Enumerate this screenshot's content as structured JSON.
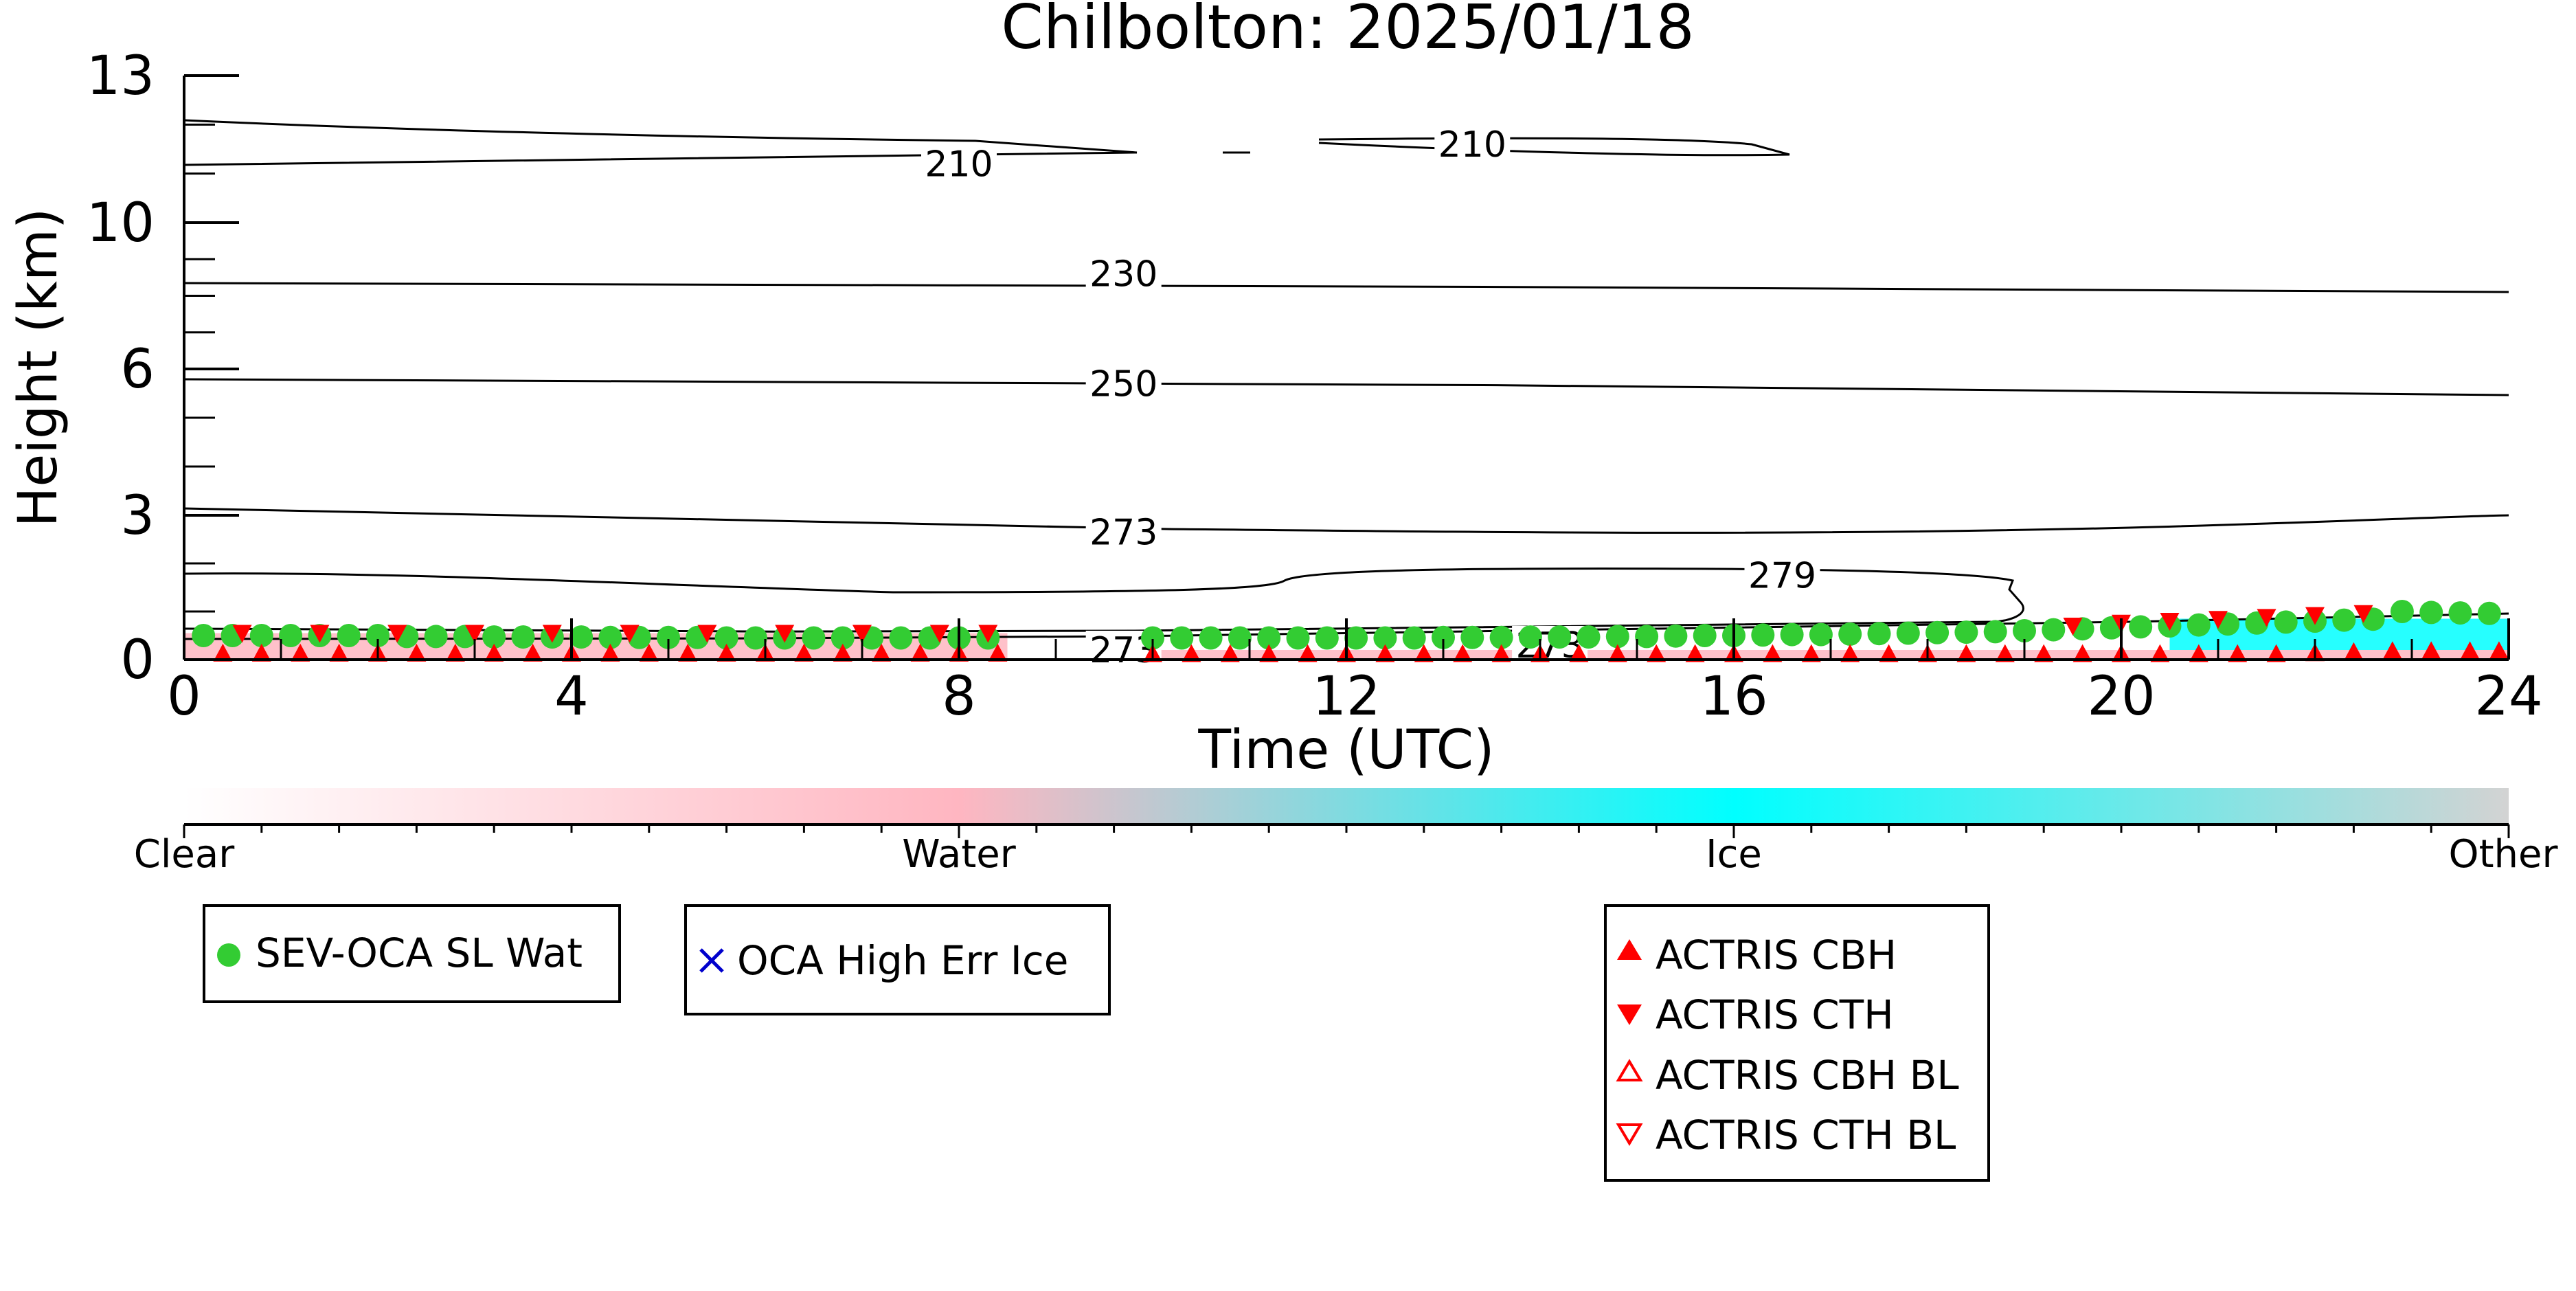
{
  "chart_data": {
    "type": "heatmap",
    "title": "Chilbolton: 2025/01/18",
    "xlabel": "Time (UTC)",
    "ylabel": "Height (km)",
    "xlim": [
      0,
      24
    ],
    "ylim": [
      0,
      13
    ],
    "y_scale": "nonlinear (stretched near surface)",
    "x_ticks": [
      0,
      4,
      8,
      12,
      16,
      20,
      24
    ],
    "x_tick_labels": [
      "0",
      "4",
      "8",
      "12",
      "16",
      "20",
      "24"
    ],
    "y_ticks": [
      0,
      3,
      6,
      10,
      13
    ],
    "y_tick_labels": [
      "0",
      "3",
      "6",
      "10",
      "13"
    ],
    "colorbar": {
      "labels": [
        "Clear",
        "Water",
        "Ice",
        "Other"
      ],
      "colors": [
        "#ffffff",
        "#ffb6c1",
        "#00ffff",
        "#d3d3d3"
      ]
    },
    "cloud_phase_segments": [
      {
        "phase": "Water",
        "start": 0.0,
        "end": 8.5,
        "base_km": 0.0,
        "top_km": 0.55
      },
      {
        "phase": "Water",
        "start": 9.5,
        "end": 24.0,
        "base_km": 0.0,
        "top_km": 0.2
      },
      {
        "phase": "Ice",
        "start": 20.5,
        "end": 24.0,
        "base_km": 0.2,
        "top_km": 0.85
      }
    ],
    "temperature_contours": [
      {
        "label": "210",
        "label_positions": [
          [
            8.0,
            11.2
          ],
          [
            13.3,
            11.6
          ]
        ]
      },
      {
        "label": "230",
        "label_positions": [
          [
            9.7,
            8.6
          ]
        ]
      },
      {
        "label": "250",
        "label_positions": [
          [
            9.7,
            5.7
          ]
        ]
      },
      {
        "label": "273",
        "label_positions": [
          [
            9.7,
            2.65
          ],
          [
            9.7,
            0.2
          ],
          [
            14.1,
            0.3
          ]
        ]
      },
      {
        "label": "279",
        "label_positions": [
          [
            16.5,
            1.75
          ]
        ]
      }
    ],
    "series": [
      {
        "name": "SEV-OCA SL Wat",
        "marker": "circle",
        "color": "#33cc33",
        "points": [
          [
            0.2,
            0.5
          ],
          [
            0.5,
            0.5
          ],
          [
            0.8,
            0.5
          ],
          [
            1.1,
            0.5
          ],
          [
            1.4,
            0.5
          ],
          [
            1.7,
            0.5
          ],
          [
            2.0,
            0.5
          ],
          [
            2.3,
            0.48
          ],
          [
            2.6,
            0.48
          ],
          [
            2.9,
            0.48
          ],
          [
            3.2,
            0.47
          ],
          [
            3.5,
            0.47
          ],
          [
            3.8,
            0.47
          ],
          [
            4.1,
            0.47
          ],
          [
            4.4,
            0.46
          ],
          [
            4.7,
            0.46
          ],
          [
            5.0,
            0.46
          ],
          [
            5.3,
            0.46
          ],
          [
            5.6,
            0.45
          ],
          [
            5.9,
            0.45
          ],
          [
            6.2,
            0.45
          ],
          [
            6.5,
            0.45
          ],
          [
            6.8,
            0.45
          ],
          [
            7.1,
            0.45
          ],
          [
            7.4,
            0.45
          ],
          [
            7.7,
            0.45
          ],
          [
            8.0,
            0.45
          ],
          [
            8.3,
            0.45
          ],
          [
            10.0,
            0.45
          ],
          [
            10.3,
            0.45
          ],
          [
            10.6,
            0.45
          ],
          [
            10.9,
            0.45
          ],
          [
            11.2,
            0.45
          ],
          [
            11.5,
            0.45
          ],
          [
            11.8,
            0.45
          ],
          [
            12.1,
            0.45
          ],
          [
            12.4,
            0.45
          ],
          [
            12.7,
            0.45
          ],
          [
            13.0,
            0.46
          ],
          [
            13.3,
            0.46
          ],
          [
            13.6,
            0.46
          ],
          [
            13.9,
            0.47
          ],
          [
            14.2,
            0.47
          ],
          [
            14.5,
            0.47
          ],
          [
            14.8,
            0.48
          ],
          [
            15.1,
            0.48
          ],
          [
            15.4,
            0.49
          ],
          [
            15.7,
            0.5
          ],
          [
            16.0,
            0.5
          ],
          [
            16.3,
            0.51
          ],
          [
            16.6,
            0.52
          ],
          [
            16.9,
            0.52
          ],
          [
            17.2,
            0.53
          ],
          [
            17.5,
            0.54
          ],
          [
            17.8,
            0.55
          ],
          [
            18.1,
            0.56
          ],
          [
            18.4,
            0.57
          ],
          [
            18.7,
            0.58
          ],
          [
            19.0,
            0.6
          ],
          [
            19.3,
            0.62
          ],
          [
            19.6,
            0.64
          ],
          [
            19.9,
            0.66
          ],
          [
            20.2,
            0.68
          ],
          [
            20.5,
            0.7
          ],
          [
            20.8,
            0.72
          ],
          [
            21.1,
            0.74
          ],
          [
            21.4,
            0.76
          ],
          [
            21.7,
            0.78
          ],
          [
            22.0,
            0.8
          ],
          [
            22.3,
            0.82
          ],
          [
            22.6,
            0.84
          ],
          [
            22.9,
            1.0
          ],
          [
            23.2,
            0.98
          ],
          [
            23.5,
            0.97
          ],
          [
            23.8,
            0.96
          ]
        ]
      },
      {
        "name": "OCA High Err Ice",
        "marker": "x",
        "color": "#0000cc",
        "points": []
      },
      {
        "name": "ACTRIS CBH",
        "marker": "triangle-up-filled",
        "color": "#ff0000",
        "points": [
          [
            0.4,
            0.13
          ],
          [
            0.8,
            0.13
          ],
          [
            1.2,
            0.13
          ],
          [
            1.6,
            0.13
          ],
          [
            2.0,
            0.13
          ],
          [
            2.4,
            0.13
          ],
          [
            2.8,
            0.13
          ],
          [
            3.2,
            0.13
          ],
          [
            3.6,
            0.13
          ],
          [
            4.0,
            0.13
          ],
          [
            4.4,
            0.13
          ],
          [
            4.8,
            0.13
          ],
          [
            5.2,
            0.13
          ],
          [
            5.6,
            0.13
          ],
          [
            6.0,
            0.13
          ],
          [
            6.4,
            0.13
          ],
          [
            6.8,
            0.13
          ],
          [
            7.2,
            0.13
          ],
          [
            7.6,
            0.13
          ],
          [
            8.0,
            0.13
          ],
          [
            8.4,
            0.13
          ],
          [
            10.0,
            0.12
          ],
          [
            10.4,
            0.12
          ],
          [
            10.8,
            0.12
          ],
          [
            11.2,
            0.12
          ],
          [
            11.6,
            0.12
          ],
          [
            12.0,
            0.12
          ],
          [
            12.4,
            0.12
          ],
          [
            12.8,
            0.12
          ],
          [
            13.2,
            0.12
          ],
          [
            13.6,
            0.12
          ],
          [
            14.0,
            0.12
          ],
          [
            14.4,
            0.12
          ],
          [
            14.8,
            0.12
          ],
          [
            15.2,
            0.12
          ],
          [
            15.6,
            0.12
          ],
          [
            16.0,
            0.12
          ],
          [
            16.4,
            0.12
          ],
          [
            16.8,
            0.12
          ],
          [
            17.2,
            0.12
          ],
          [
            17.6,
            0.12
          ],
          [
            18.0,
            0.12
          ],
          [
            18.4,
            0.12
          ],
          [
            18.8,
            0.12
          ],
          [
            19.2,
            0.12
          ],
          [
            19.6,
            0.12
          ],
          [
            20.0,
            0.12
          ],
          [
            20.4,
            0.12
          ],
          [
            20.8,
            0.12
          ],
          [
            21.2,
            0.12
          ],
          [
            21.6,
            0.12
          ],
          [
            22.0,
            0.14
          ],
          [
            22.4,
            0.16
          ],
          [
            22.8,
            0.18
          ],
          [
            23.2,
            0.18
          ],
          [
            23.6,
            0.18
          ],
          [
            23.9,
            0.18
          ]
        ]
      },
      {
        "name": "ACTRIS CTH",
        "marker": "triangle-down-filled",
        "color": "#ff0000",
        "points": [
          [
            0.6,
            0.55
          ],
          [
            1.4,
            0.55
          ],
          [
            2.2,
            0.55
          ],
          [
            3.0,
            0.55
          ],
          [
            3.8,
            0.55
          ],
          [
            4.6,
            0.55
          ],
          [
            5.4,
            0.55
          ],
          [
            6.2,
            0.55
          ],
          [
            7.0,
            0.55
          ],
          [
            7.8,
            0.55
          ],
          [
            8.3,
            0.55
          ],
          [
            19.5,
            0.7
          ],
          [
            20.0,
            0.76
          ],
          [
            20.5,
            0.8
          ],
          [
            21.0,
            0.84
          ],
          [
            21.5,
            0.88
          ],
          [
            22.0,
            0.92
          ],
          [
            22.5,
            0.96
          ]
        ]
      },
      {
        "name": "ACTRIS CBH BL",
        "marker": "triangle-up-open",
        "color": "#ff0000",
        "points": []
      },
      {
        "name": "ACTRIS CTH BL",
        "marker": "triangle-down-open",
        "color": "#ff0000",
        "points": []
      }
    ]
  }
}
